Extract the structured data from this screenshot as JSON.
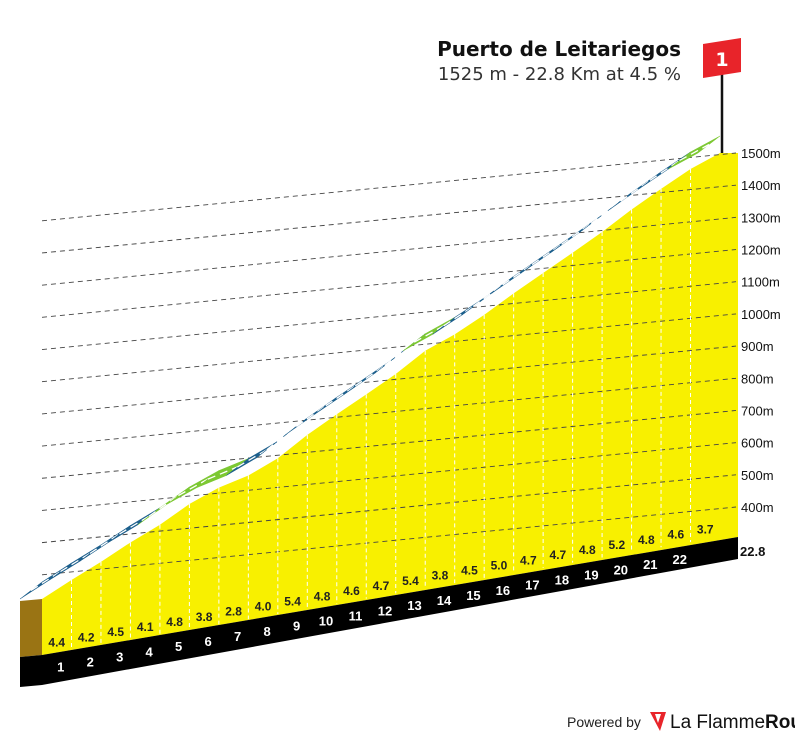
{
  "chart_data": {
    "type": "area",
    "title": "Puerto de Leitariegos",
    "subtitle": "1525 m - 22.8 Km at 4.5 %",
    "summit_marker": "1",
    "total_distance_label": "22.8",
    "y_tick_labels": [
      "1500m",
      "1400m",
      "1300m",
      "1200m",
      "1100m",
      "1000m",
      "900m",
      "800m",
      "700m",
      "600m",
      "500m",
      "400m"
    ],
    "y_ticks": [
      1500,
      1400,
      1300,
      1200,
      1100,
      1000,
      900,
      800,
      700,
      600,
      500,
      400
    ],
    "km_labels": [
      "1",
      "2",
      "3",
      "4",
      "5",
      "6",
      "7",
      "8",
      "9",
      "10",
      "11",
      "12",
      "13",
      "14",
      "15",
      "16",
      "17",
      "18",
      "19",
      "20",
      "21",
      "22"
    ],
    "gradients": [
      "4.4",
      "4.2",
      "4.5",
      "4.1",
      "4.8",
      "3.8",
      "2.8",
      "4.0",
      "5.4",
      "4.8",
      "4.6",
      "4.7",
      "5.4",
      "3.8",
      "4.5",
      "5.0",
      "4.7",
      "4.7",
      "4.8",
      "5.2",
      "4.8",
      "4.6",
      "3.7"
    ],
    "gradient_category_colors": {
      "easy": "#7cc832",
      "moderate": "#1c5f8c"
    },
    "segment_categories": [
      "moderate",
      "moderate",
      "moderate",
      "moderate",
      "easy",
      "easy",
      "easy",
      "moderate",
      "moderate",
      "moderate",
      "moderate",
      "moderate",
      "moderate",
      "easy",
      "moderate",
      "moderate",
      "moderate",
      "moderate",
      "moderate",
      "moderate",
      "moderate",
      "moderate",
      "easy"
    ],
    "x_unit": "km",
    "y_unit": "m",
    "fill_color": "#f8f000",
    "flag_color": "#e8242a"
  },
  "footer": {
    "powered_by": "Powered by",
    "brand_part1": "La Flamme",
    "brand_part2": "Rouge"
  }
}
